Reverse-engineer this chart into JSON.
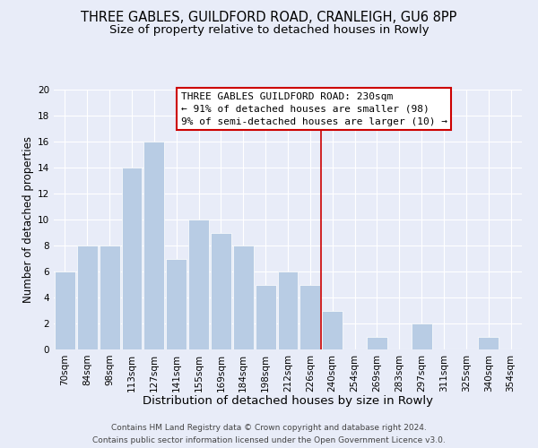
{
  "title": "THREE GABLES, GUILDFORD ROAD, CRANLEIGH, GU6 8PP",
  "subtitle": "Size of property relative to detached houses in Rowly",
  "xlabel": "Distribution of detached houses by size in Rowly",
  "ylabel": "Number of detached properties",
  "footer1": "Contains HM Land Registry data © Crown copyright and database right 2024.",
  "footer2": "Contains public sector information licensed under the Open Government Licence v3.0.",
  "bar_labels": [
    "70sqm",
    "84sqm",
    "98sqm",
    "113sqm",
    "127sqm",
    "141sqm",
    "155sqm",
    "169sqm",
    "184sqm",
    "198sqm",
    "212sqm",
    "226sqm",
    "240sqm",
    "254sqm",
    "269sqm",
    "283sqm",
    "297sqm",
    "311sqm",
    "325sqm",
    "340sqm",
    "354sqm"
  ],
  "bar_values": [
    6,
    8,
    8,
    14,
    16,
    7,
    10,
    9,
    8,
    5,
    6,
    5,
    3,
    0,
    1,
    0,
    2,
    0,
    0,
    1,
    0
  ],
  "bar_color": "#b8cce4",
  "bar_edge_color": "#ffffff",
  "vline_x": 11.5,
  "vline_color": "#cc0000",
  "annotation_title": "THREE GABLES GUILDFORD ROAD: 230sqm",
  "annotation_line1": "← 91% of detached houses are smaller (98)",
  "annotation_line2": "9% of semi-detached houses are larger (10) →",
  "annotation_box_edge": "#cc0000",
  "ylim": [
    0,
    20
  ],
  "yticks": [
    0,
    2,
    4,
    6,
    8,
    10,
    12,
    14,
    16,
    18,
    20
  ],
  "bg_color": "#e8ecf8",
  "grid_color": "#ffffff",
  "title_fontsize": 10.5,
  "subtitle_fontsize": 9.5,
  "xlabel_fontsize": 9.5,
  "ylabel_fontsize": 8.5,
  "tick_fontsize": 7.5,
  "annotation_fontsize": 8,
  "footer_fontsize": 6.5
}
